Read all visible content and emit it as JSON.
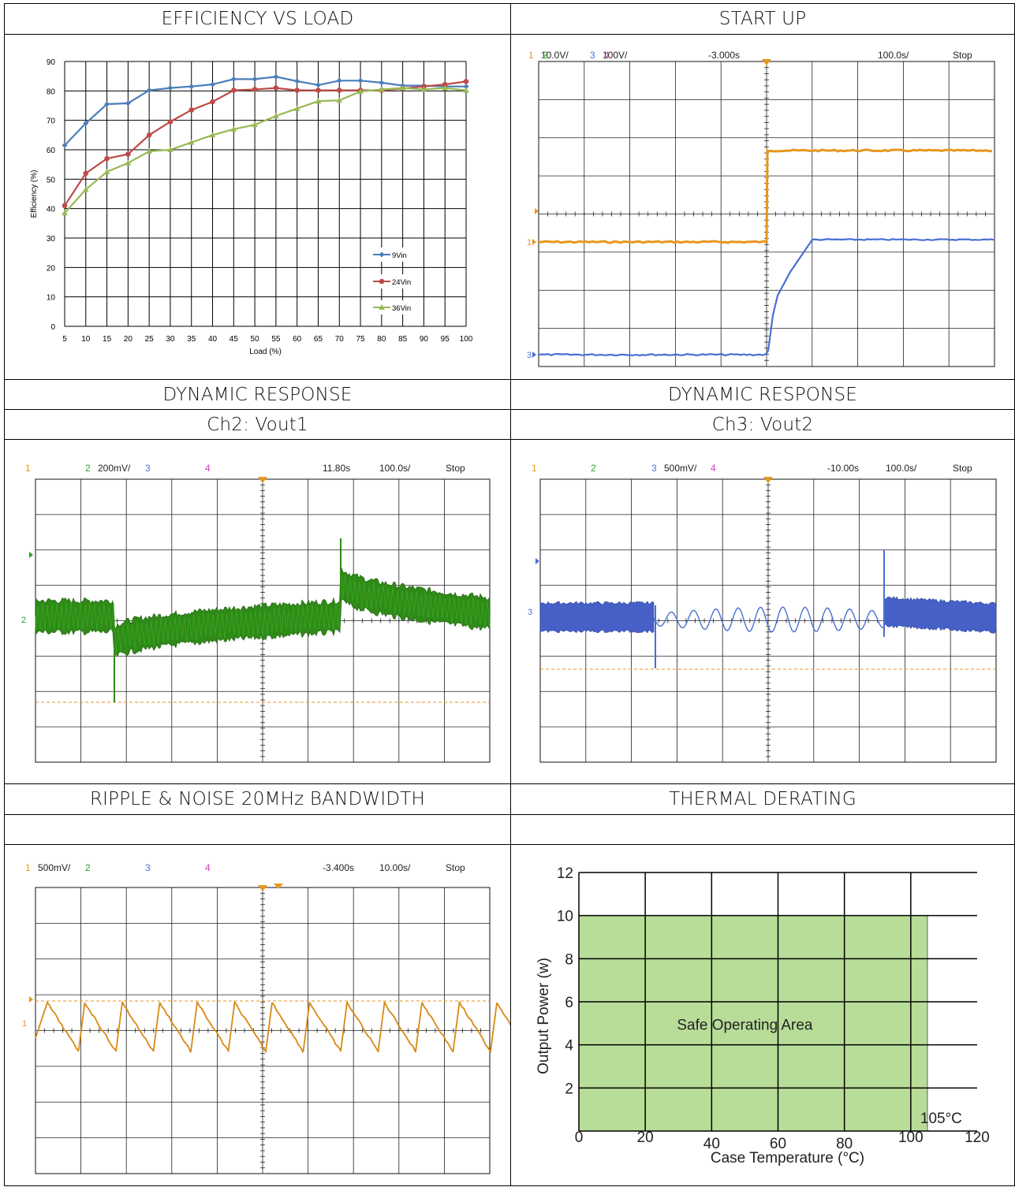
{
  "headers": {
    "efficiency": "EFFICIENCY VS LOAD",
    "startup": "START UP",
    "dyn1": "DYNAMIC RESPONSE",
    "dyn1_sub": "Ch2: Vout1",
    "dyn2": "DYNAMIC RESPONSE",
    "dyn2_sub": "Ch3: Vout2",
    "ripple": "RIPPLE & NOISE 20MHz BANDWIDTH",
    "thermal": "THERMAL DERATING"
  },
  "colors": {
    "ch1": "#e8961e",
    "ch2": "#2ca02c",
    "ch3": "#4a6fd4",
    "ch4": "#d63ab8",
    "s9vin": "#4a7ebb",
    "s24vin": "#be4b48",
    "s36vin": "#98b954",
    "soa_fill": "#b8dd98"
  },
  "scopes": {
    "startup": {
      "ch1": "1",
      "ch1_scale": "10.0V/",
      "ch2": "2",
      "ch3": "3",
      "ch3_scale": "100V/",
      "ch4": "4",
      "delay": "-3.000s",
      "timebase": "100.0s/",
      "state": "Stop"
    },
    "dyn1": {
      "ch1": "1",
      "ch2": "2",
      "ch2_scale": "200mV/",
      "ch3": "3",
      "ch4": "4",
      "delay": "11.80s",
      "timebase": "100.0s/",
      "state": "Stop"
    },
    "dyn2": {
      "ch1": "1",
      "ch2": "2",
      "ch3": "3",
      "ch3_scale": "500mV/",
      "ch4": "4",
      "delay": "-10.00s",
      "timebase": "100.0s/",
      "state": "Stop"
    },
    "ripple": {
      "ch1": "1",
      "ch1_scale": "500mV/",
      "ch2": "2",
      "ch3": "3",
      "ch4": "4",
      "delay": "-3.400s",
      "timebase": "10.00s/",
      "state": "Stop"
    }
  },
  "chart_data": [
    {
      "type": "line",
      "title": "",
      "xlabel": "Load (%)",
      "ylabel": "Efficiency (%)",
      "x": [
        5,
        10,
        15,
        20,
        25,
        30,
        35,
        40,
        45,
        50,
        55,
        60,
        65,
        70,
        75,
        80,
        85,
        90,
        95,
        100
      ],
      "xlim": [
        5,
        100
      ],
      "ylim": [
        0,
        90
      ],
      "yticks": [
        0,
        10,
        20,
        30,
        40,
        50,
        60,
        70,
        80,
        90
      ],
      "grid": true,
      "legend": "right",
      "series": [
        {
          "name": "9Vin",
          "values": [
            61.5,
            69,
            75.5,
            75.8,
            80.2,
            81,
            81.5,
            82.2,
            84,
            84,
            84.8,
            83.3,
            82,
            83.5,
            83.5,
            82.8,
            81.8,
            81.8,
            81.5,
            81.5
          ]
        },
        {
          "name": "24Vin",
          "values": [
            41,
            52,
            57,
            58.5,
            65,
            69.5,
            73.5,
            76.3,
            80.2,
            80.5,
            81,
            80.2,
            80.2,
            80.2,
            80.2,
            80.2,
            80.8,
            81.5,
            82.2,
            83.2
          ]
        },
        {
          "name": "36Vin",
          "values": [
            38.5,
            46.5,
            52.5,
            55.5,
            59.5,
            60,
            62.5,
            65,
            67,
            68.5,
            71.5,
            74,
            76.5,
            76.8,
            79.8,
            80.5,
            81,
            80.5,
            81,
            80.2
          ]
        }
      ]
    },
    {
      "type": "area",
      "title": "",
      "xlabel": "Case Temperature (°C)",
      "ylabel": "Output Power (w)",
      "xlim": [
        0,
        120
      ],
      "ylim": [
        0,
        12
      ],
      "xticks": [
        0,
        20,
        40,
        60,
        80,
        100,
        120
      ],
      "yticks": [
        2,
        4,
        6,
        8,
        10,
        12
      ],
      "grid": true,
      "series": [
        {
          "x": [
            0,
            105
          ],
          "values": [
            10,
            10
          ]
        }
      ],
      "annotations": [
        "Safe Operating Area",
        "105°C"
      ]
    }
  ]
}
